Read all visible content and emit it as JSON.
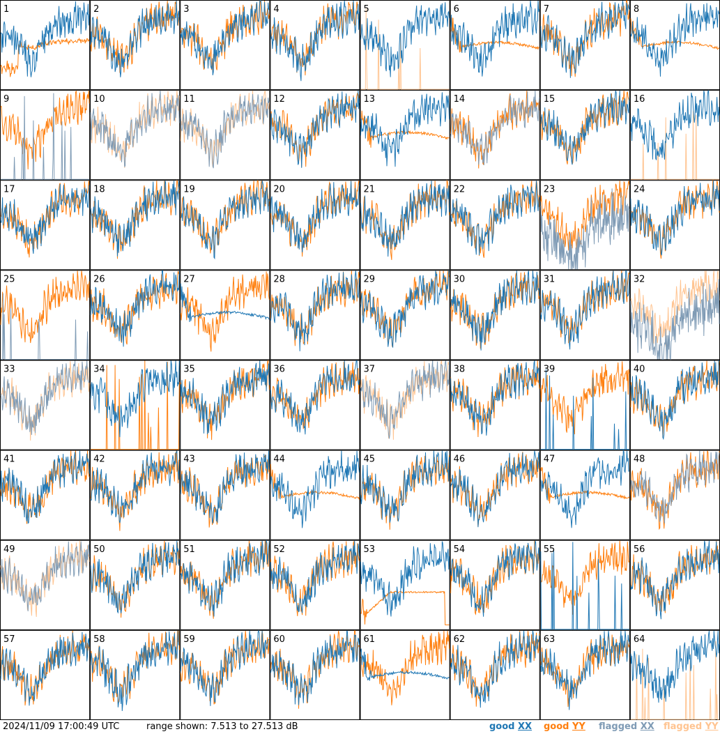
{
  "timestamp": "2024/11/09 17:00:49 UTC",
  "range_text": "range shown: 7.513 to 27.513 dB",
  "legend": [
    {
      "prefix": "good",
      "key": "XX",
      "color": "#1f77b4"
    },
    {
      "prefix": "good",
      "key": "YY",
      "color": "#ff7f0e"
    },
    {
      "prefix": "flagged",
      "key": "XX",
      "color": "#7f9bb5"
    },
    {
      "prefix": "flagged",
      "key": "YY",
      "color": "#ffc491"
    }
  ],
  "chart_data": {
    "type": "line",
    "ylim": [
      7.513,
      27.513
    ],
    "yunit": "dB",
    "grid": "8x8",
    "series_names": [
      "good XX",
      "good YY",
      "flagged XX",
      "flagged YY"
    ],
    "panels": [
      {
        "label": "1",
        "xx": "good",
        "yy": "good",
        "pattern": "yy_dip"
      },
      {
        "label": "2",
        "xx": "good",
        "yy": "good",
        "pattern": "normal"
      },
      {
        "label": "3",
        "xx": "good",
        "yy": "good",
        "pattern": "normal"
      },
      {
        "label": "4",
        "xx": "good",
        "yy": "good",
        "pattern": "normal"
      },
      {
        "label": "5",
        "xx": "good",
        "yy": "flagged",
        "pattern": "yy_spikes"
      },
      {
        "label": "6",
        "xx": "good",
        "yy": "good",
        "pattern": "yy_flat"
      },
      {
        "label": "7",
        "xx": "good",
        "yy": "good",
        "pattern": "normal"
      },
      {
        "label": "8",
        "xx": "good",
        "yy": "good",
        "pattern": "yy_flat"
      },
      {
        "label": "9",
        "xx": "flagged",
        "yy": "good",
        "pattern": "xx_spikes"
      },
      {
        "label": "10",
        "xx": "flagged",
        "yy": "flagged",
        "pattern": "normal"
      },
      {
        "label": "11",
        "xx": "flagged",
        "yy": "flagged",
        "pattern": "normal"
      },
      {
        "label": "12",
        "xx": "good",
        "yy": "good",
        "pattern": "normal"
      },
      {
        "label": "13",
        "xx": "good",
        "yy": "good",
        "pattern": "yy_flat"
      },
      {
        "label": "14",
        "xx": "flagged",
        "yy": "good",
        "pattern": "normal"
      },
      {
        "label": "15",
        "xx": "good",
        "yy": "good",
        "pattern": "normal"
      },
      {
        "label": "16",
        "xx": "good",
        "yy": "flagged",
        "pattern": "yy_spikes"
      },
      {
        "label": "17",
        "xx": "good",
        "yy": "good",
        "pattern": "normal"
      },
      {
        "label": "18",
        "xx": "good",
        "yy": "good",
        "pattern": "normal"
      },
      {
        "label": "19",
        "xx": "good",
        "yy": "good",
        "pattern": "normal"
      },
      {
        "label": "20",
        "xx": "good",
        "yy": "good",
        "pattern": "normal"
      },
      {
        "label": "21",
        "xx": "good",
        "yy": "good",
        "pattern": "normal"
      },
      {
        "label": "22",
        "xx": "good",
        "yy": "good",
        "pattern": "normal"
      },
      {
        "label": "23",
        "xx": "flagged",
        "yy": "good",
        "pattern": "xx_noisy"
      },
      {
        "label": "24",
        "xx": "good",
        "yy": "good",
        "pattern": "normal"
      },
      {
        "label": "25",
        "xx": "flagged",
        "yy": "good",
        "pattern": "xx_spikes"
      },
      {
        "label": "26",
        "xx": "good",
        "yy": "good",
        "pattern": "normal"
      },
      {
        "label": "27",
        "xx": "good",
        "yy": "good",
        "pattern": "xx_flat"
      },
      {
        "label": "28",
        "xx": "good",
        "yy": "good",
        "pattern": "normal"
      },
      {
        "label": "29",
        "xx": "good",
        "yy": "good",
        "pattern": "normal"
      },
      {
        "label": "30",
        "xx": "good",
        "yy": "good",
        "pattern": "normal"
      },
      {
        "label": "31",
        "xx": "good",
        "yy": "good",
        "pattern": "normal"
      },
      {
        "label": "32",
        "xx": "flagged",
        "yy": "flagged",
        "pattern": "xx_noisy"
      },
      {
        "label": "33",
        "xx": "flagged",
        "yy": "flagged",
        "pattern": "normal"
      },
      {
        "label": "34",
        "xx": "good",
        "yy": "good",
        "pattern": "yy_spikes"
      },
      {
        "label": "35",
        "xx": "good",
        "yy": "good",
        "pattern": "normal"
      },
      {
        "label": "36",
        "xx": "good",
        "yy": "good",
        "pattern": "normal"
      },
      {
        "label": "37",
        "xx": "flagged",
        "yy": "flagged",
        "pattern": "normal"
      },
      {
        "label": "38",
        "xx": "good",
        "yy": "good",
        "pattern": "normal"
      },
      {
        "label": "39",
        "xx": "good",
        "yy": "good",
        "pattern": "xx_spikes"
      },
      {
        "label": "40",
        "xx": "good",
        "yy": "good",
        "pattern": "normal"
      },
      {
        "label": "41",
        "xx": "good",
        "yy": "good",
        "pattern": "normal"
      },
      {
        "label": "42",
        "xx": "good",
        "yy": "good",
        "pattern": "normal"
      },
      {
        "label": "43",
        "xx": "good",
        "yy": "good",
        "pattern": "normal"
      },
      {
        "label": "44",
        "xx": "good",
        "yy": "good",
        "pattern": "yy_flat"
      },
      {
        "label": "45",
        "xx": "good",
        "yy": "good",
        "pattern": "normal"
      },
      {
        "label": "46",
        "xx": "good",
        "yy": "good",
        "pattern": "normal"
      },
      {
        "label": "47",
        "xx": "good",
        "yy": "good",
        "pattern": "yy_flat"
      },
      {
        "label": "48",
        "xx": "flagged",
        "yy": "good",
        "pattern": "normal"
      },
      {
        "label": "49",
        "xx": "flagged",
        "yy": "flagged",
        "pattern": "normal"
      },
      {
        "label": "50",
        "xx": "good",
        "yy": "good",
        "pattern": "normal"
      },
      {
        "label": "51",
        "xx": "good",
        "yy": "good",
        "pattern": "normal"
      },
      {
        "label": "52",
        "xx": "good",
        "yy": "good",
        "pattern": "normal"
      },
      {
        "label": "53",
        "xx": "good",
        "yy": "good",
        "pattern": "yy_bowl"
      },
      {
        "label": "54",
        "xx": "good",
        "yy": "good",
        "pattern": "normal"
      },
      {
        "label": "55",
        "xx": "good",
        "yy": "good",
        "pattern": "xx_spikes"
      },
      {
        "label": "56",
        "xx": "good",
        "yy": "good",
        "pattern": "normal"
      },
      {
        "label": "57",
        "xx": "good",
        "yy": "good",
        "pattern": "normal"
      },
      {
        "label": "58",
        "xx": "good",
        "yy": "good",
        "pattern": "normal"
      },
      {
        "label": "59",
        "xx": "good",
        "yy": "good",
        "pattern": "normal"
      },
      {
        "label": "60",
        "xx": "good",
        "yy": "good",
        "pattern": "normal"
      },
      {
        "label": "61",
        "xx": "good",
        "yy": "good",
        "pattern": "xx_flat"
      },
      {
        "label": "62",
        "xx": "good",
        "yy": "good",
        "pattern": "normal"
      },
      {
        "label": "63",
        "xx": "good",
        "yy": "good",
        "pattern": "normal"
      },
      {
        "label": "64",
        "xx": "good",
        "yy": "flagged",
        "pattern": "yy_spikes"
      }
    ]
  }
}
